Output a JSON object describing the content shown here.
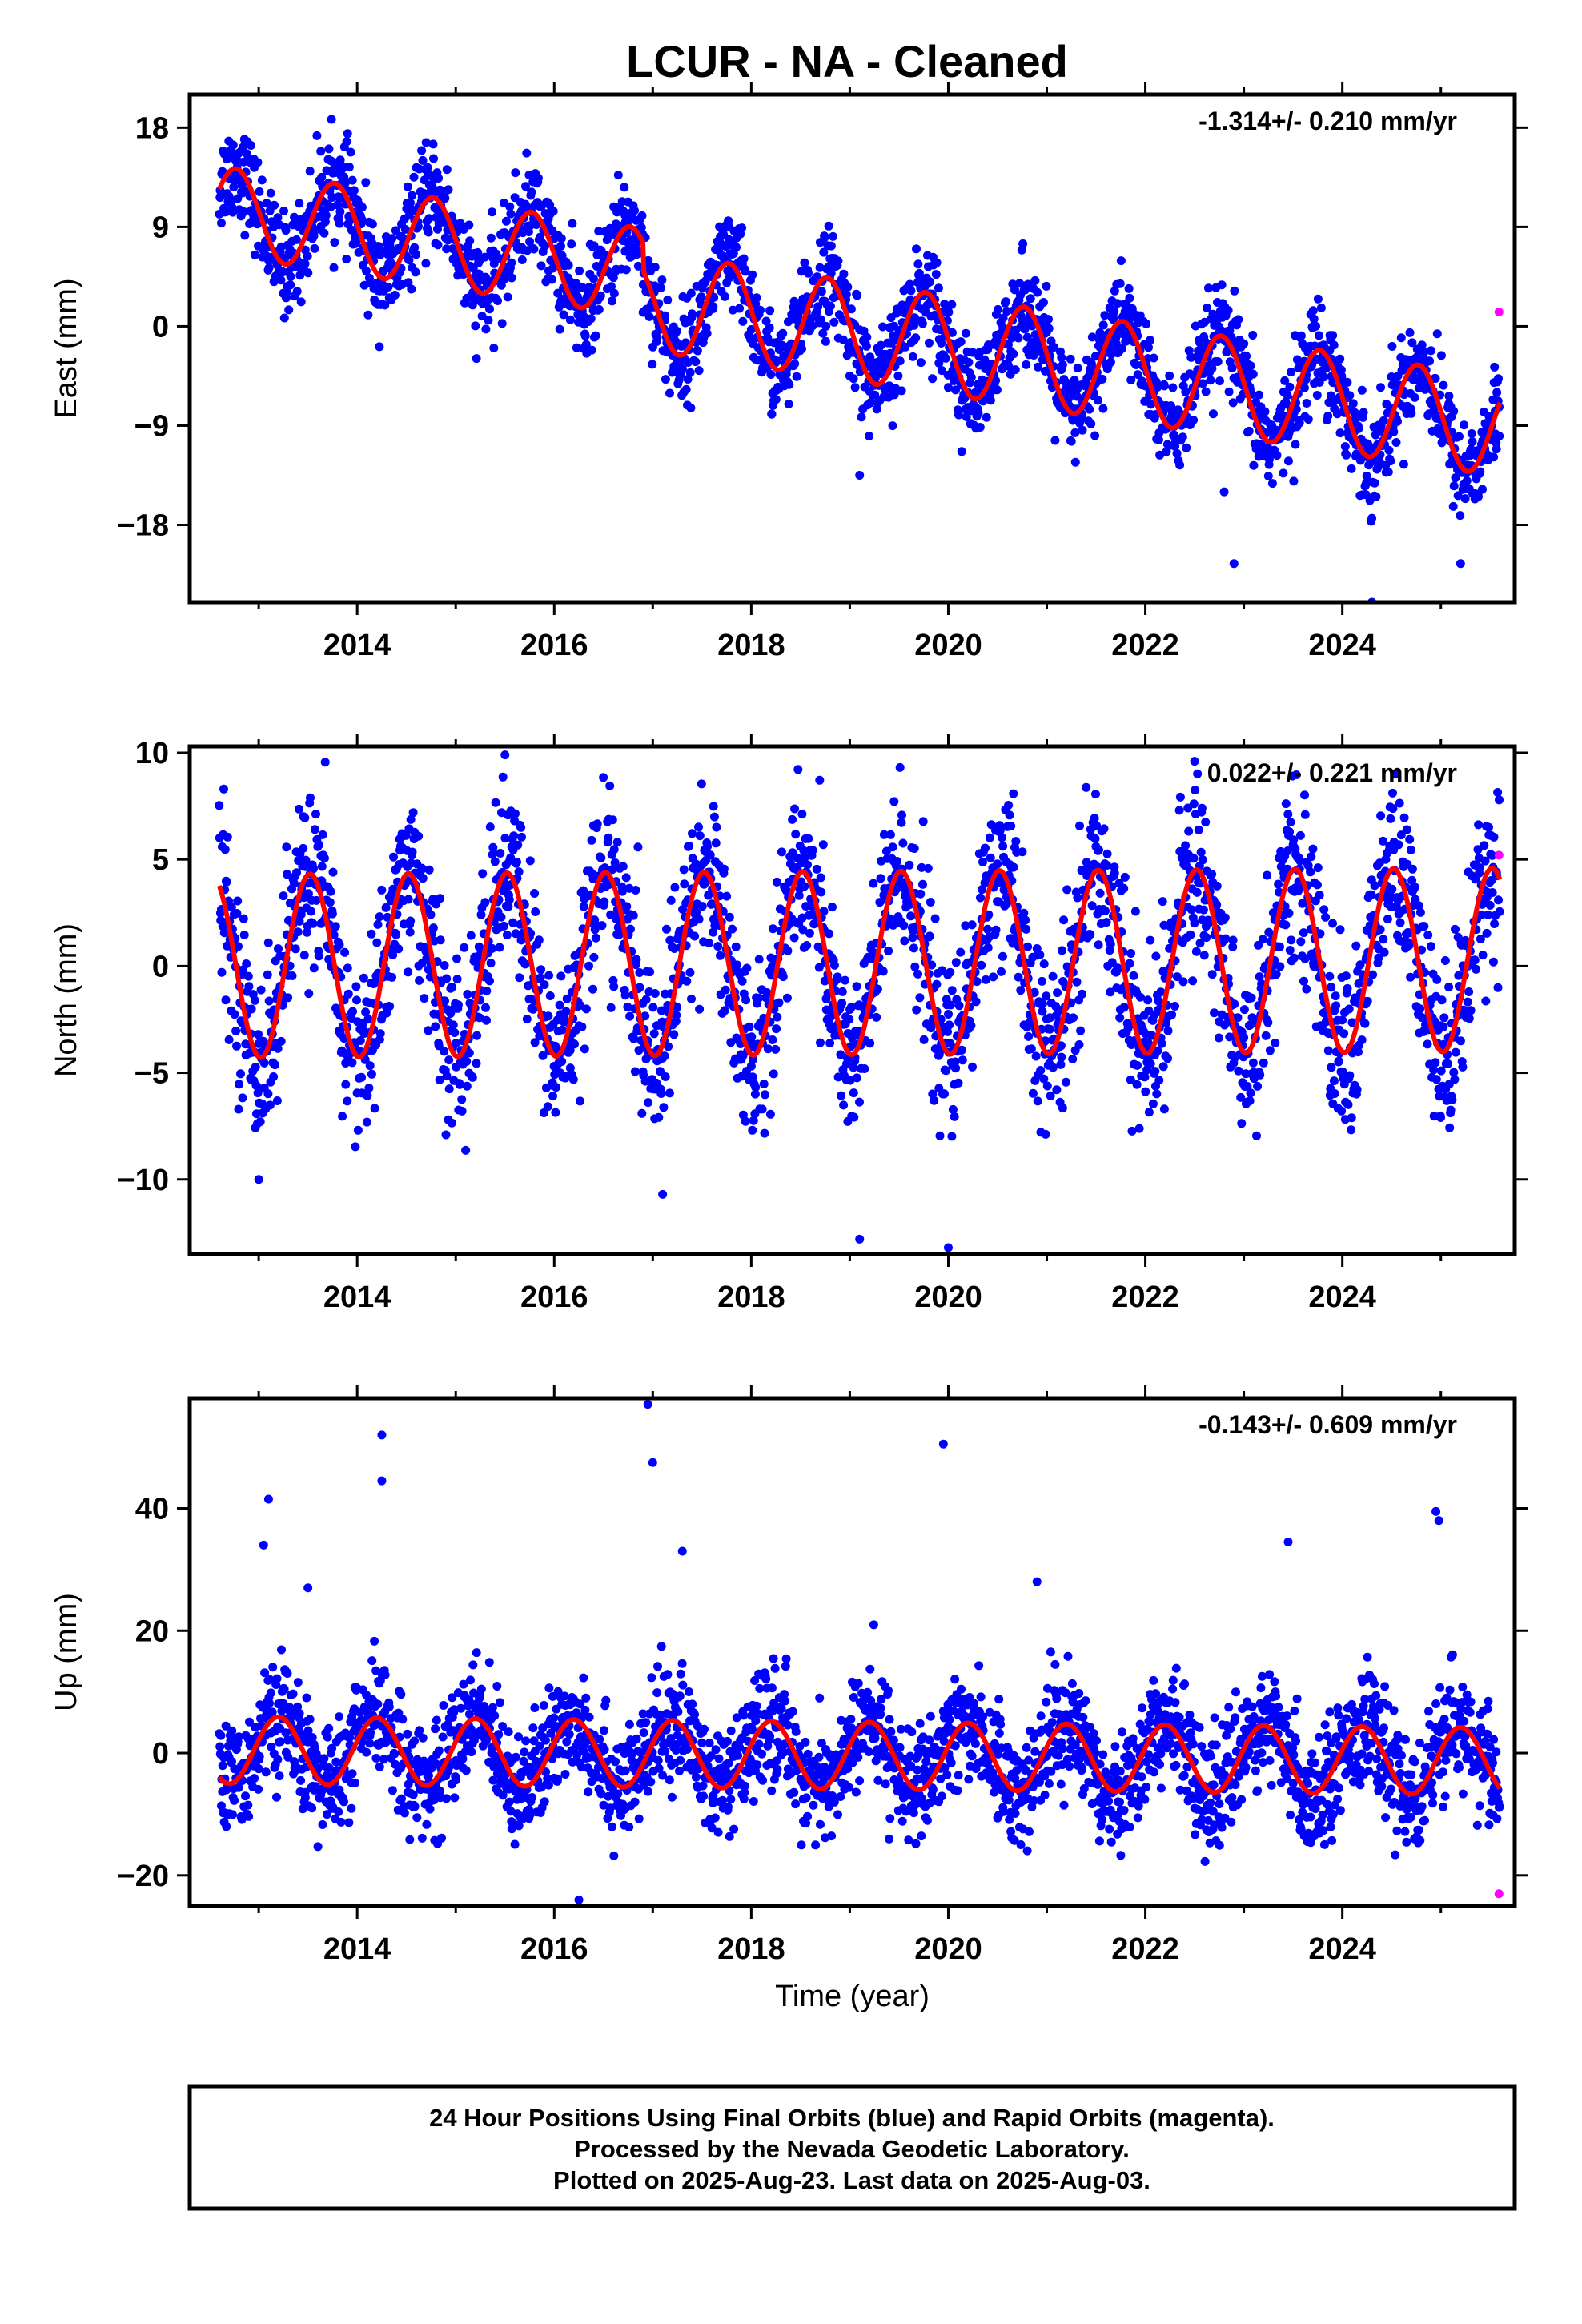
{
  "title": "LCUR  - NA - Cleaned",
  "footer": {
    "line1": "24 Hour Positions Using Final Orbits (blue) and Rapid Orbits (magenta).",
    "line2": "Processed by the Nevada Geodetic Laboratory.",
    "line3": "Plotted on 2025-Aug-23. Last data on 2025-Aug-03."
  },
  "colors": {
    "final": "#0000ff",
    "rapid": "#ff00ff",
    "model": "#ff0000",
    "frame": "#000000"
  },
  "chart_data": [
    {
      "type": "scatter",
      "name": "east",
      "ylabel": "East (mm)",
      "xlabel": "",
      "rate": "-1.314+/- 0.210 mm/yr",
      "xlim": [
        2012.3,
        2025.75
      ],
      "ylim": [
        -25,
        21
      ],
      "yticks": [
        18,
        9,
        0,
        -9,
        -18
      ],
      "ytick_labels": [
        "18",
        "9",
        "0",
        "−9",
        "−18"
      ],
      "xticks": [
        2014,
        2016,
        2018,
        2020,
        2022,
        2024
      ],
      "xtick_labels": [
        "2014",
        "2016",
        "2018",
        "2020",
        "2022",
        "2024"
      ],
      "start": 2012.6,
      "end": 2025.6,
      "model": {
        "intercept": 8.0,
        "rate": -1.314,
        "amp_early": 4.0,
        "amp_late": 4.5,
        "phase": 0.52,
        "offset_2017": -4.0,
        "offset_early": 2.5
      },
      "scatter_sd": 2.2,
      "rapid_points": [
        [
          2025.59,
          1.3
        ]
      ],
      "outliers": [
        [
          2022.9,
          -21.5
        ],
        [
          2024.3,
          -25
        ],
        [
          2025.2,
          -21.5
        ],
        [
          2019.1,
          -13.5
        ],
        [
          2022.8,
          -15
        ]
      ]
    },
    {
      "type": "scatter",
      "name": "north",
      "ylabel": "North (mm)",
      "xlabel": "",
      "rate": "0.022+/- 0.221 mm/yr",
      "xlim": [
        2012.3,
        2025.75
      ],
      "ylim": [
        -13.5,
        10.3
      ],
      "yticks": [
        10,
        5,
        0,
        -5,
        -10
      ],
      "ytick_labels": [
        "10",
        "5",
        "0",
        "−5",
        "−10"
      ],
      "xticks": [
        2014,
        2016,
        2018,
        2020,
        2022,
        2024
      ],
      "xtick_labels": [
        "2014",
        "2016",
        "2018",
        "2020",
        "2022",
        "2024"
      ],
      "start": 2012.6,
      "end": 2025.6,
      "model": {
        "intercept": 0.0,
        "rate": 0.022,
        "amp_early": 4.3,
        "amp_late": 4.3,
        "phase": 0.27,
        "offset_2017": 0,
        "offset_early": 0
      },
      "scatter_sd": 2.0,
      "rapid_points": [
        [
          2025.59,
          5.2
        ]
      ],
      "outliers": [
        [
          2013.0,
          -10
        ],
        [
          2019.1,
          -12.8
        ],
        [
          2020.0,
          -13.2
        ],
        [
          2017.1,
          -10.7
        ],
        [
          2022.5,
          9.6
        ],
        [
          2015.5,
          9.9
        ]
      ]
    },
    {
      "type": "scatter",
      "name": "up",
      "ylabel": "Up (mm)",
      "xlabel": "Time (year)",
      "rate": "-0.143+/- 0.609 mm/yr",
      "xlim": [
        2012.3,
        2025.75
      ],
      "ylim": [
        -25,
        58
      ],
      "yticks": [
        40,
        20,
        0,
        -20
      ],
      "ytick_labels": [
        "40",
        "20",
        "0",
        "−20"
      ],
      "xticks": [
        2014,
        2016,
        2018,
        2020,
        2022,
        2024
      ],
      "xtick_labels": [
        "2014",
        "2016",
        "2018",
        "2020",
        "2022",
        "2024"
      ],
      "start": 2012.6,
      "end": 2025.6,
      "model": {
        "intercept": 0.5,
        "rate": -0.143,
        "amp_early": 5.5,
        "amp_late": 5.5,
        "phase": 0.95,
        "offset_2017": 0,
        "offset_early": 0
      },
      "scatter_sd": 4.5,
      "rapid_points": [
        [
          2025.59,
          -23
        ]
      ],
      "outliers": [
        [
          2014.25,
          52
        ],
        [
          2014.25,
          44.5
        ],
        [
          2016.95,
          57
        ],
        [
          2017.0,
          47.5
        ],
        [
          2019.95,
          50.5
        ],
        [
          2013.1,
          41.5
        ],
        [
          2013.05,
          34
        ],
        [
          2017.3,
          33
        ],
        [
          2023.45,
          34.5
        ],
        [
          2024.95,
          39.5
        ],
        [
          2024.98,
          38
        ],
        [
          2016.25,
          -24
        ],
        [
          2013.5,
          27
        ],
        [
          2020.9,
          28
        ]
      ]
    }
  ]
}
